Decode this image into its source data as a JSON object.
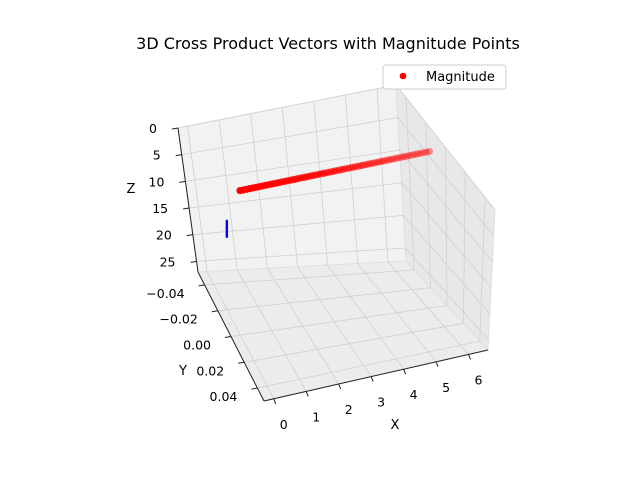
{
  "chart_data": {
    "type": "scatter",
    "title": "3D Cross Product Vectors with Magnitude Points",
    "xlabel": "X",
    "ylabel": "Y",
    "zlabel": "Z",
    "x_ticks": [
      "0",
      "1",
      "2",
      "3",
      "4",
      "5",
      "6"
    ],
    "y_ticks": [
      "−0.04",
      "−0.02",
      "0.00",
      "0.02",
      "0.04"
    ],
    "z_ticks": [
      "0",
      "5",
      "10",
      "15",
      "20",
      "25"
    ],
    "xlim": [
      -0.3,
      6.6
    ],
    "ylim": [
      -0.05,
      0.05
    ],
    "zlim": [
      0,
      27
    ],
    "zaxis_inverted": true,
    "legend": {
      "entries": [
        "Magnitude"
      ],
      "placement": "top-right"
    },
    "series": [
      {
        "name": "Magnitude",
        "kind": "points",
        "color": "#ff0000",
        "points": {
          "x_start": 0,
          "x_end": 6.28,
          "count": 60,
          "y": 0,
          "z": 0
        }
      },
      {
        "kind": "vectors",
        "color": "#0000ff",
        "segments": [
          {
            "z": 10.5,
            "y": -0.02
          },
          {
            "z": 13.5,
            "y": -0.02
          }
        ]
      }
    ]
  }
}
